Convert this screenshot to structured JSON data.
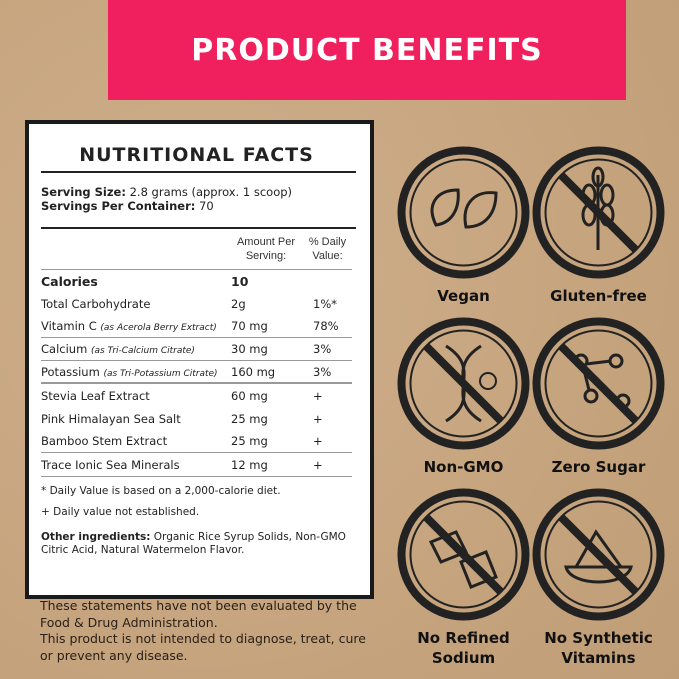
{
  "banner": {
    "title": "PRODUCT BENEFITS",
    "color": "#f01f5d"
  },
  "facts": {
    "title": "NUTRITIONAL FACTS",
    "serving_size_label": "Serving Size:",
    "serving_size_value": " 2.8 grams (approx. 1 scoop)",
    "servings_label": "Servings Per Container:",
    "servings_value": " 70",
    "col_amount": "Amount Per Serving:",
    "col_dv": "% Daily Value:",
    "rows": [
      {
        "name": "Calories",
        "note": "",
        "amount": "10",
        "dv": ""
      },
      {
        "name": "Total Carbohydrate",
        "note": "",
        "amount": "2g",
        "dv": "1%*"
      },
      {
        "name": "Vitamin C ",
        "note": "(as Acerola Berry Extract)",
        "amount": "70 mg",
        "dv": "78%"
      },
      {
        "name": "Calcium ",
        "note": "(as Tri-Calcium Citrate)",
        "amount": "30 mg",
        "dv": "3%"
      },
      {
        "name": "Potassium ",
        "note": "(as Tri-Potassium Citrate)",
        "amount": "160 mg",
        "dv": "3%"
      },
      {
        "name": "Stevia Leaf Extract",
        "note": "",
        "amount": "60 mg",
        "dv": "+"
      },
      {
        "name": "Pink Himalayan Sea Salt",
        "note": "",
        "amount": "25 mg",
        "dv": "+"
      },
      {
        "name": "Bamboo Stem Extract",
        "note": "",
        "amount": "25 mg",
        "dv": "+"
      },
      {
        "name": "Trace Ionic Sea Minerals",
        "note": "",
        "amount": "12 mg",
        "dv": "+"
      }
    ],
    "note1": "* Daily Value is based on a 2,000-calorie diet.",
    "note2": "+ Daily value not established.",
    "other_label": "Other ingredients:",
    "other_value": " Organic Rice Syrup Solids, Non-GMO Citric Acid, Natural Watermelon Flavor."
  },
  "disclaimer": {
    "line1": "These statements have not been evaluated by the Food & Drug Administration.",
    "line2": "This product is not intended to diagnose, treat, cure or prevent any disease."
  },
  "badges": [
    {
      "label": "Vegan",
      "icon": "leaves-icon"
    },
    {
      "label": "Gluten-free",
      "icon": "wheat-icon"
    },
    {
      "label": "Non-GMO",
      "icon": "dna-icon"
    },
    {
      "label": "Zero Sugar",
      "icon": "molecule-icon"
    },
    {
      "label": "No Refined Sodium",
      "icon": "salt-cubes-icon"
    },
    {
      "label": "No Synthetic Vitamins",
      "icon": "powder-bowl-icon"
    }
  ]
}
